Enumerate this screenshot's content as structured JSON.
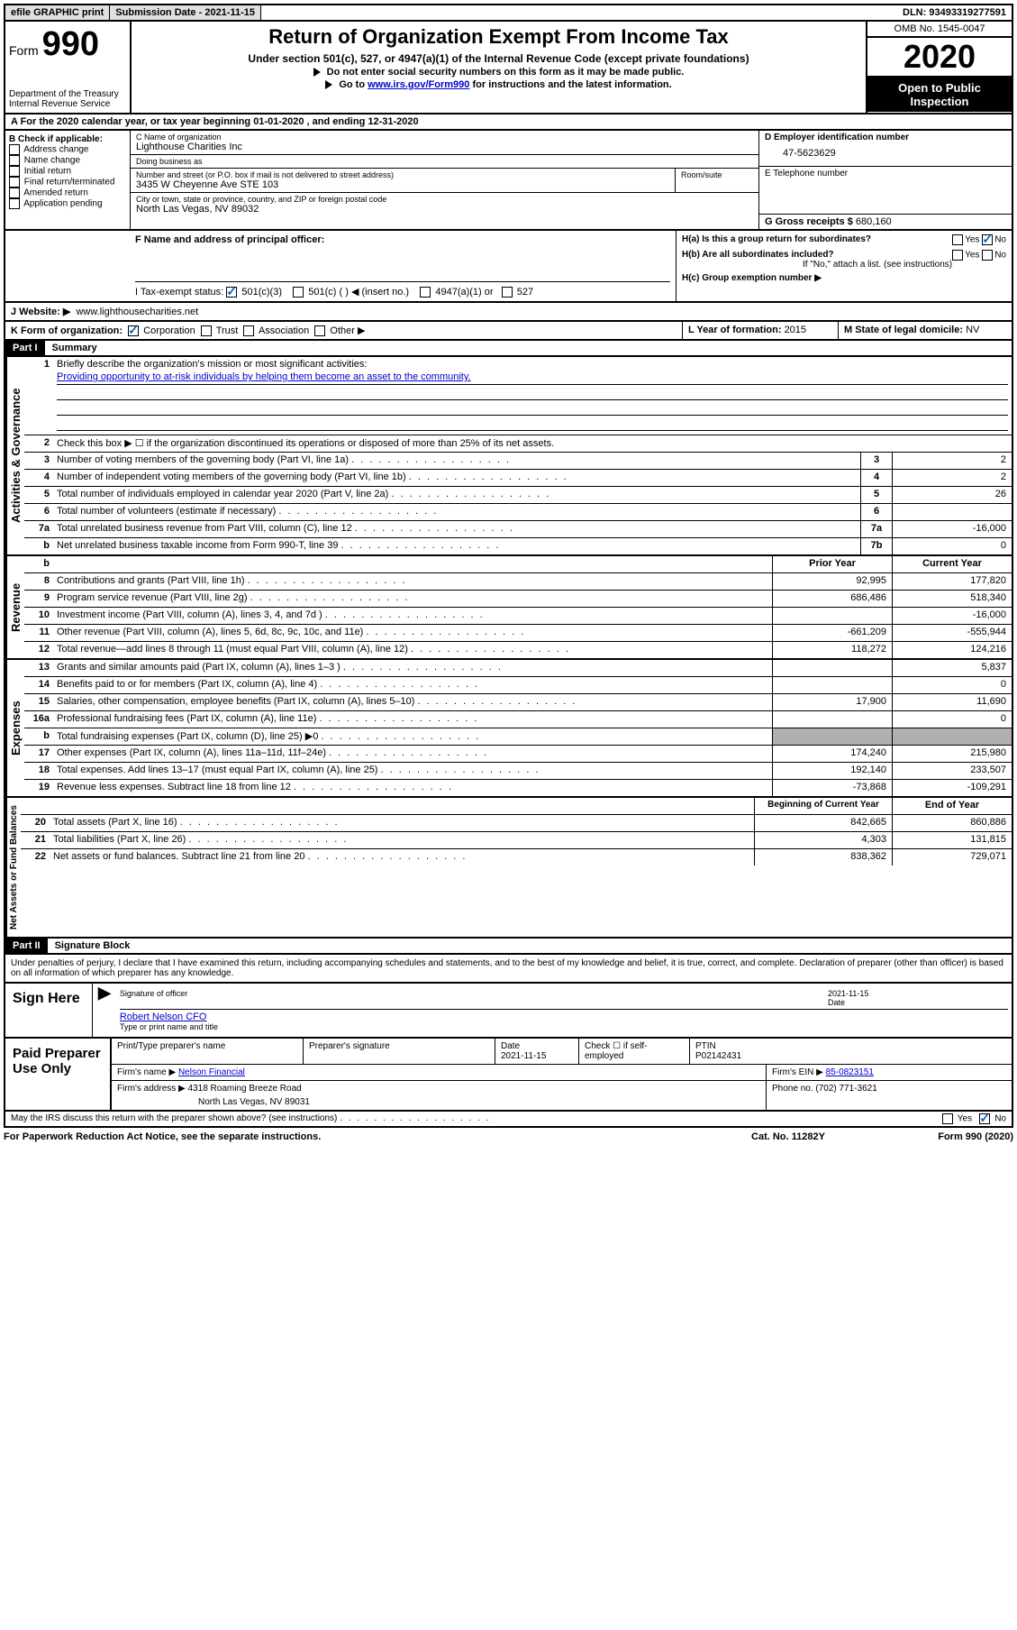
{
  "topbar": {
    "efile": "efile GRAPHIC print",
    "submission_label": "Submission Date - ",
    "submission_date": "2021-11-15",
    "dln_label": "DLN: ",
    "dln": "93493319277591"
  },
  "header": {
    "form_label": "Form",
    "form_num": "990",
    "dept": "Department of the Treasury",
    "irs": "Internal Revenue Service",
    "title": "Return of Organization Exempt From Income Tax",
    "subtitle": "Under section 501(c), 527, or 4947(a)(1) of the Internal Revenue Code (except private foundations)",
    "instr1": "Do not enter social security numbers on this form as it may be made public.",
    "instr2_pre": "Go to ",
    "instr2_link": "www.irs.gov/Form990",
    "instr2_post": " for instructions and the latest information.",
    "omb": "OMB No. 1545-0047",
    "year": "2020",
    "inspection": "Open to Public Inspection"
  },
  "rowA": "A   For the 2020 calendar year, or tax year beginning 01-01-2020     , and ending 12-31-2020",
  "sectionB": {
    "label": "B Check if applicable:",
    "opts": [
      "Address change",
      "Name change",
      "Initial return",
      "Final return/terminated",
      "Amended return",
      "Application pending"
    ]
  },
  "sectionC": {
    "name_label": "C Name of organization",
    "name": "Lighthouse Charities Inc",
    "dba_label": "Doing business as",
    "dba": "",
    "street_label": "Number and street (or P.O. box if mail is not delivered to street address)",
    "room_label": "Room/suite",
    "street": "3435 W Cheyenne Ave STE 103",
    "city_label": "City or town, state or province, country, and ZIP or foreign postal code",
    "city": "North Las Vegas, NV  89032"
  },
  "sectionD": {
    "ein_label": "D Employer identification number",
    "ein": "47-5623629",
    "phone_label": "E Telephone number",
    "phone": "",
    "gross_label": "G Gross receipts $ ",
    "gross": "680,160"
  },
  "sectionF": {
    "label": "F  Name and address of principal officer:",
    "value": ""
  },
  "sectionH": {
    "ha_label": "H(a)  Is this a group return for subordinates?",
    "ha_yes": "Yes",
    "ha_no": "No",
    "hb_label": "H(b)  Are all subordinates included?",
    "hb_yes": "Yes",
    "hb_no": "No",
    "hb_note": "If \"No,\" attach a list. (see instructions)",
    "hc_label": "H(c)  Group exemption number ▶"
  },
  "taxExempt": {
    "label": "I    Tax-exempt status:",
    "o1": "501(c)(3)",
    "o2": "501(c) (  ) ◀ (insert no.)",
    "o3": "4947(a)(1) or",
    "o4": "527"
  },
  "rowJ": {
    "label": "J    Website: ▶",
    "value": "www.lighthousecharities.net"
  },
  "rowK": {
    "label": "K Form of organization:",
    "o1": "Corporation",
    "o2": "Trust",
    "o3": "Association",
    "o4": "Other ▶",
    "l_label": "L Year of formation: ",
    "l_val": "2015",
    "m_label": "M State of legal domicile: ",
    "m_val": "NV"
  },
  "part1": {
    "header": "Part I",
    "title": "Summary",
    "q1_label": "Briefly describe the organization's mission or most significant activities:",
    "q1_val": "Providing opportunity to at-risk individuals by helping them become an asset to the community.",
    "q2": "Check this box ▶ ☐  if the organization discontinued its operations or disposed of more than 25% of its net assets.",
    "lines_gov": [
      {
        "n": "3",
        "d": "Number of voting members of the governing body (Part VI, line 1a)",
        "b": "3",
        "v": "2"
      },
      {
        "n": "4",
        "d": "Number of independent voting members of the governing body (Part VI, line 1b)",
        "b": "4",
        "v": "2"
      },
      {
        "n": "5",
        "d": "Total number of individuals employed in calendar year 2020 (Part V, line 2a)",
        "b": "5",
        "v": "26"
      },
      {
        "n": "6",
        "d": "Total number of volunteers (estimate if necessary)",
        "b": "6",
        "v": ""
      },
      {
        "n": "7a",
        "d": "Total unrelated business revenue from Part VIII, column (C), line 12",
        "b": "7a",
        "v": "-16,000"
      },
      {
        "n": "b",
        "d": "Net unrelated business taxable income from Form 990-T, line 39",
        "b": "7b",
        "v": "0"
      }
    ],
    "col_prior": "Prior Year",
    "col_curr": "Current Year",
    "lines_rev": [
      {
        "n": "8",
        "d": "Contributions and grants (Part VIII, line 1h)",
        "p": "92,995",
        "c": "177,820"
      },
      {
        "n": "9",
        "d": "Program service revenue (Part VIII, line 2g)",
        "p": "686,486",
        "c": "518,340"
      },
      {
        "n": "10",
        "d": "Investment income (Part VIII, column (A), lines 3, 4, and 7d )",
        "p": "",
        "c": "-16,000"
      },
      {
        "n": "11",
        "d": "Other revenue (Part VIII, column (A), lines 5, 6d, 8c, 9c, 10c, and 11e)",
        "p": "-661,209",
        "c": "-555,944"
      },
      {
        "n": "12",
        "d": "Total revenue—add lines 8 through 11 (must equal Part VIII, column (A), line 12)",
        "p": "118,272",
        "c": "124,216"
      }
    ],
    "lines_exp": [
      {
        "n": "13",
        "d": "Grants and similar amounts paid (Part IX, column (A), lines 1–3 )",
        "p": "",
        "c": "5,837"
      },
      {
        "n": "14",
        "d": "Benefits paid to or for members (Part IX, column (A), line 4)",
        "p": "",
        "c": "0"
      },
      {
        "n": "15",
        "d": "Salaries, other compensation, employee benefits (Part IX, column (A), lines 5–10)",
        "p": "17,900",
        "c": "11,690"
      },
      {
        "n": "16a",
        "d": "Professional fundraising fees (Part IX, column (A), line 11e)",
        "p": "",
        "c": "0"
      },
      {
        "n": "b",
        "d": "Total fundraising expenses (Part IX, column (D), line 25) ▶0",
        "p": "shaded",
        "c": "shaded"
      },
      {
        "n": "17",
        "d": "Other expenses (Part IX, column (A), lines 11a–11d, 11f–24e)",
        "p": "174,240",
        "c": "215,980"
      },
      {
        "n": "18",
        "d": "Total expenses. Add lines 13–17 (must equal Part IX, column (A), line 25)",
        "p": "192,140",
        "c": "233,507"
      },
      {
        "n": "19",
        "d": "Revenue less expenses. Subtract line 18 from line 12",
        "p": "-73,868",
        "c": "-109,291"
      }
    ],
    "col_begin": "Beginning of Current Year",
    "col_end": "End of Year",
    "lines_net": [
      {
        "n": "20",
        "d": "Total assets (Part X, line 16)",
        "p": "842,665",
        "c": "860,886"
      },
      {
        "n": "21",
        "d": "Total liabilities (Part X, line 26)",
        "p": "4,303",
        "c": "131,815"
      },
      {
        "n": "22",
        "d": "Net assets or fund balances. Subtract line 21 from line 20",
        "p": "838,362",
        "c": "729,071"
      }
    ],
    "vlabels": {
      "gov": "Activities & Governance",
      "rev": "Revenue",
      "exp": "Expenses",
      "net": "Net Assets or Fund Balances"
    }
  },
  "part2": {
    "header": "Part II",
    "title": "Signature Block",
    "decl": "Under penalties of perjury, I declare that I have examined this return, including accompanying schedules and statements, and to the best of my knowledge and belief, it is true, correct, and complete. Declaration of preparer (other than officer) is based on all information of which preparer has any knowledge.",
    "sign_here": "Sign Here",
    "sig_officer": "Signature of officer",
    "sig_date_label": "Date",
    "sig_date": "2021-11-15",
    "officer_name": "Robert Nelson  CFO",
    "type_name": "Type or print name and title",
    "paid_prep": "Paid Preparer Use Only",
    "prep_name_label": "Print/Type preparer's name",
    "prep_sig_label": "Preparer's signature",
    "prep_date_label": "Date",
    "prep_date": "2021-11-15",
    "prep_check": "Check ☐ if self-employed",
    "ptin_label": "PTIN",
    "ptin": "P02142431",
    "firm_name_label": "Firm's name    ▶ ",
    "firm_name": "Nelson Financial",
    "firm_ein_label": "Firm's EIN ▶ ",
    "firm_ein": "85-0823151",
    "firm_addr_label": "Firm's address ▶ ",
    "firm_addr1": "4318 Roaming Breeze Road",
    "firm_addr2": "North Las Vegas, NV  89031",
    "phone_label": "Phone no. ",
    "phone": "(702) 771-3621",
    "discuss": "May the IRS discuss this return with the preparer shown above? (see instructions)",
    "yes": "Yes",
    "no": "No"
  },
  "footer": {
    "pra": "For Paperwork Reduction Act Notice, see the separate instructions.",
    "cat": "Cat. No. 11282Y",
    "form": "Form 990 (2020)"
  }
}
